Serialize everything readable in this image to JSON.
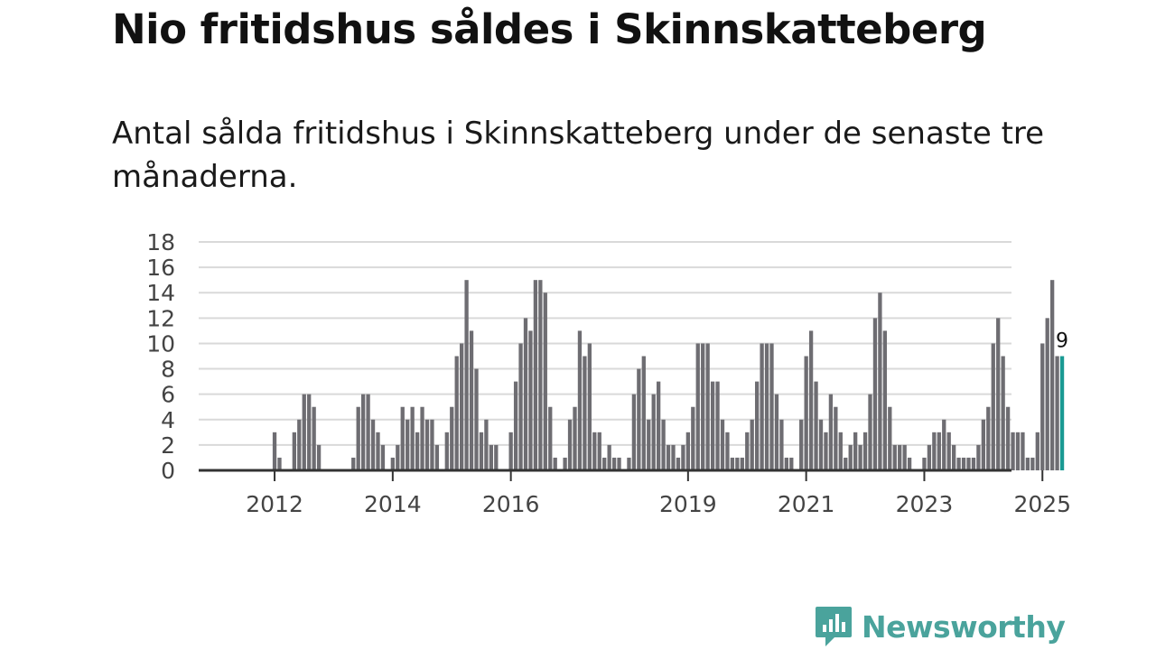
{
  "title": "Nio fritidshus såldes i Skinnskatteberg",
  "subtitle": "Antal sålda fritidshus i Skinnskatteberg under de senaste tre månaderna.",
  "brand": {
    "name": "Newsworthy",
    "icon": "newsworthy-logo-icon"
  },
  "colors": {
    "bar": "#6e6d72",
    "highlight": "#1a9a93",
    "grid": "#d9d9d9",
    "axis": "#333333",
    "brand": "#4aa39c"
  },
  "chart_data": {
    "type": "bar",
    "title": "Nio fritidshus såldes i Skinnskatteberg",
    "xlabel": "",
    "ylabel": "",
    "ylim": [
      0,
      18
    ],
    "yticks": [
      0,
      2,
      4,
      6,
      8,
      10,
      12,
      14,
      16,
      18
    ],
    "grid": true,
    "start": "2011-01",
    "xticks": [
      {
        "label": "2012",
        "index": 12
      },
      {
        "label": "2014",
        "index": 36
      },
      {
        "label": "2016",
        "index": 60
      },
      {
        "label": "2019",
        "index": 96
      },
      {
        "label": "2021",
        "index": 120
      },
      {
        "label": "2023",
        "index": 144
      },
      {
        "label": "2025",
        "index": 168
      }
    ],
    "values": [
      0,
      0,
      0,
      0,
      0,
      0,
      0,
      0,
      0,
      0,
      0,
      0,
      3,
      1,
      0,
      0,
      3,
      4,
      6,
      6,
      5,
      2,
      0,
      0,
      0,
      0,
      0,
      0,
      1,
      5,
      6,
      6,
      4,
      3,
      2,
      0,
      1,
      2,
      5,
      4,
      5,
      3,
      5,
      4,
      4,
      2,
      0,
      3,
      5,
      9,
      10,
      15,
      11,
      8,
      3,
      4,
      2,
      2,
      0,
      0,
      3,
      7,
      10,
      12,
      11,
      15,
      15,
      14,
      5,
      1,
      0,
      1,
      4,
      5,
      11,
      9,
      10,
      3,
      3,
      1,
      2,
      1,
      1,
      0,
      1,
      6,
      8,
      9,
      4,
      6,
      7,
      4,
      2,
      2,
      1,
      2,
      3,
      5,
      10,
      10,
      10,
      7,
      7,
      4,
      3,
      1,
      1,
      1,
      3,
      4,
      7,
      10,
      10,
      10,
      6,
      4,
      1,
      1,
      0,
      4,
      9,
      11,
      7,
      4,
      3,
      6,
      5,
      3,
      1,
      2,
      3,
      2,
      3,
      6,
      12,
      14,
      11,
      5,
      2,
      2,
      2,
      1,
      0,
      0,
      1,
      2,
      3,
      3,
      4,
      3,
      2,
      1,
      1,
      1,
      1,
      2,
      4,
      5,
      10,
      12,
      9,
      5,
      3,
      3,
      3,
      1,
      1,
      3,
      10,
      12,
      15,
      9,
      9
    ],
    "highlight": {
      "index": 172,
      "value": 9,
      "label": "9"
    }
  }
}
